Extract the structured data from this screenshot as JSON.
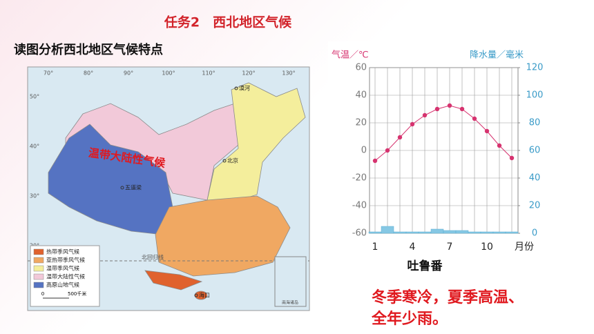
{
  "slide": {
    "title": "任务2　西北地区气候",
    "prompt": "读图分析西北地区气候特点",
    "conclusion": [
      "冬季寒冷，夏季高温、",
      "全年少雨。"
    ]
  },
  "map": {
    "overlay_label": "温带大陆性气候",
    "longitudes": [
      "70°",
      "80°",
      "90°",
      "100°",
      "110°",
      "120°",
      "130°"
    ],
    "latitudes": [
      "50°",
      "40°",
      "30°",
      "20°"
    ],
    "places": [
      "漠河",
      "北京",
      "五道梁",
      "海口"
    ],
    "tropic": "北回归线",
    "legend": [
      {
        "label": "热带季风气候",
        "color": "#e0622e"
      },
      {
        "label": "亚热带季风气候",
        "color": "#f0a862"
      },
      {
        "label": "温带季风气候",
        "color": "#f4ee9c"
      },
      {
        "label": "温带大陆性气候",
        "color": "#f2c9d9"
      },
      {
        "label": "高原山地气候",
        "color": "#5573c2"
      }
    ],
    "scale": [
      "0",
      "500千米"
    ],
    "inset": "南海诸岛"
  },
  "chart_data": {
    "type": "climate",
    "title": "吐鲁番",
    "categories": [
      "1",
      null,
      null,
      "4",
      null,
      null,
      "7",
      null,
      null,
      "10",
      null,
      null
    ],
    "x_label": "月份",
    "y_label": "气温／℃",
    "y2_label": "降水量／毫米",
    "series": [
      {
        "type": "line",
        "color": "#d6336f",
        "values": [
          -7.5,
          0,
          9.5,
          19,
          25.5,
          30,
          32.5,
          30,
          23,
          14,
          3.5,
          -5.5
        ]
      },
      {
        "type": "bar",
        "axis": "y2",
        "color": "#86c8e4",
        "values": [
          1,
          5,
          1,
          1,
          1,
          3,
          2,
          2,
          1,
          1,
          1,
          1
        ]
      }
    ],
    "ylim": [
      -60,
      60
    ],
    "yticks": [
      -60,
      -40,
      -20,
      0,
      20,
      40,
      60
    ],
    "y2lim": [
      0,
      120
    ],
    "y2ticks": [
      0,
      20,
      40,
      60,
      80,
      100,
      120
    ],
    "grid": true
  }
}
